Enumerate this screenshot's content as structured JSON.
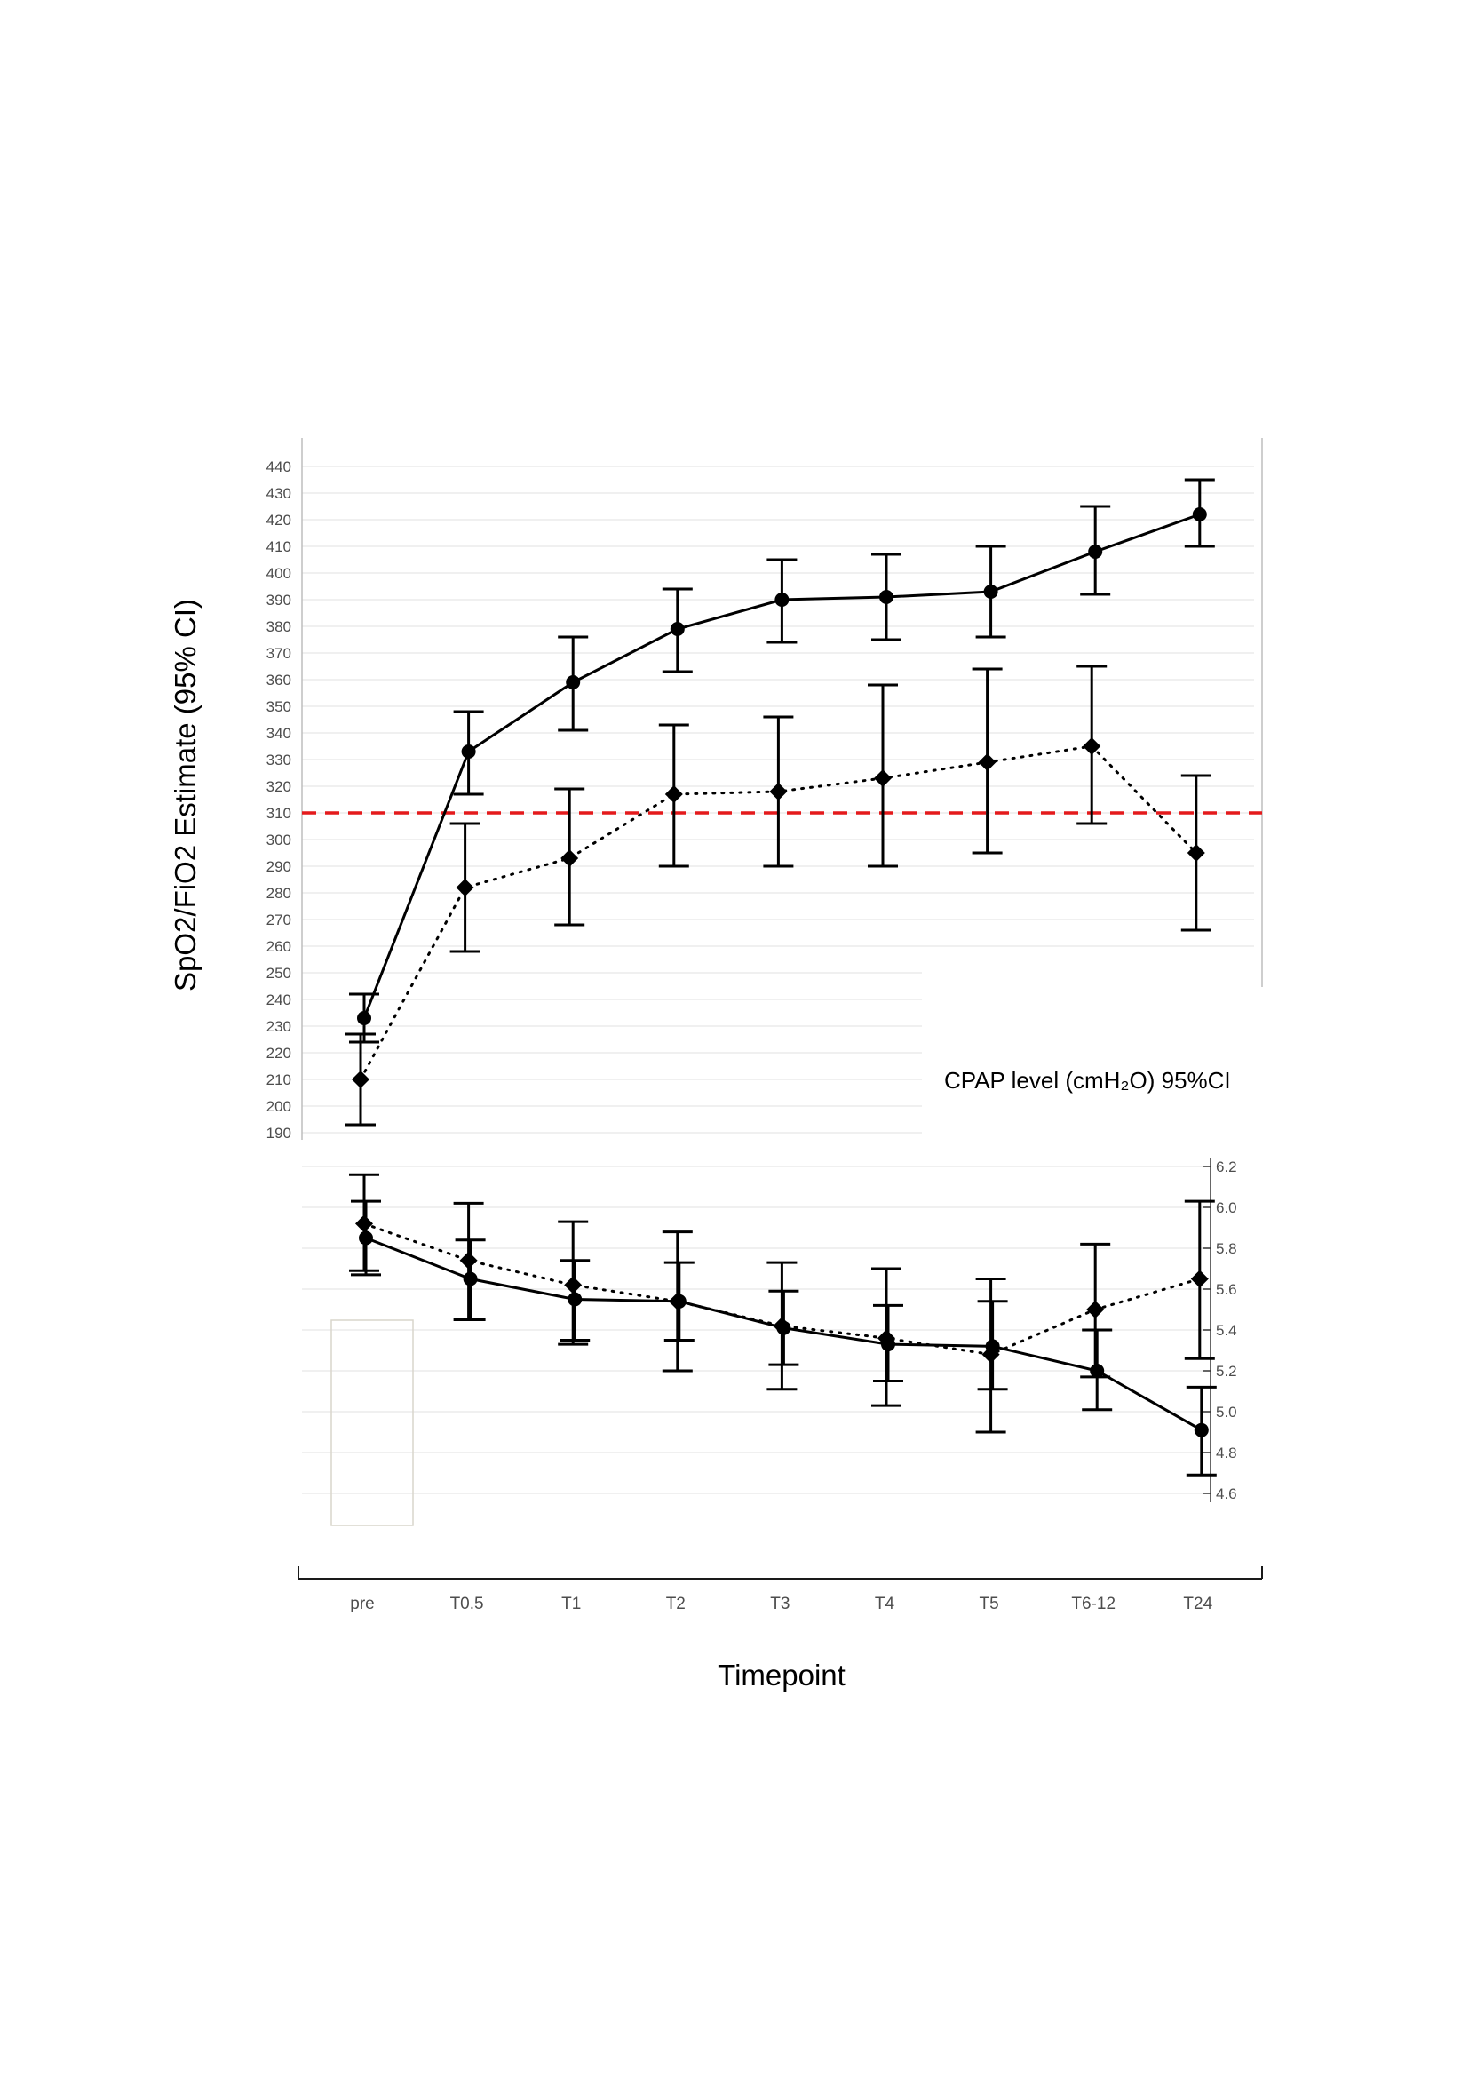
{
  "figure": {
    "x_axis_title": "Timepoint",
    "categories": [
      "pre",
      "T0.5",
      "T1",
      "T2",
      "T3",
      "T4",
      "T5",
      "T6-12",
      "T24"
    ]
  },
  "chart_data": [
    {
      "type": "line",
      "panel": "top",
      "ylabel": "SpO2/FiO2 Estimate (95% CI)",
      "ylim": [
        190,
        440
      ],
      "ytick_step": 10,
      "grid": true,
      "reference_line": {
        "value": 310,
        "label": "310",
        "color": "#e41a1c",
        "style": "dashed"
      },
      "x": [
        "pre",
        "T0.5",
        "T1",
        "T2",
        "T3",
        "T4",
        "T5",
        "T6-12",
        "T24"
      ],
      "series": [
        {
          "marker": "circle",
          "line_style": "solid",
          "values": [
            233,
            333,
            359,
            379,
            390,
            391,
            393,
            408,
            422
          ],
          "ci_low": [
            224,
            317,
            341,
            363,
            374,
            375,
            376,
            392,
            410
          ],
          "ci_high": [
            242,
            348,
            376,
            394,
            405,
            407,
            410,
            425,
            435
          ]
        },
        {
          "marker": "diamond",
          "line_style": "dotted",
          "values": [
            210,
            282,
            293,
            317,
            318,
            323,
            329,
            335,
            295
          ],
          "ci_low": [
            193,
            258,
            268,
            290,
            290,
            290,
            295,
            306,
            266
          ],
          "ci_high": [
            227,
            306,
            319,
            343,
            346,
            358,
            364,
            365,
            324
          ]
        }
      ]
    },
    {
      "type": "line",
      "panel": "bottom",
      "title": "CPAP level (cmH₂O) 95%CI",
      "ylim": [
        4.6,
        6.2
      ],
      "ytick_step": 0.2,
      "y_axis_side": "right",
      "grid": true,
      "x": [
        "pre",
        "T0.5",
        "T1",
        "T2",
        "T3",
        "T4",
        "T5",
        "T6-12",
        "T24"
      ],
      "series": [
        {
          "marker": "circle",
          "line_style": "solid",
          "values": [
            5.85,
            5.65,
            5.55,
            5.54,
            5.41,
            5.33,
            5.32,
            5.2,
            4.91
          ],
          "ci_low": [
            5.67,
            5.45,
            5.35,
            5.35,
            5.23,
            5.15,
            5.11,
            5.01,
            4.69
          ],
          "ci_high": [
            6.03,
            5.84,
            5.74,
            5.73,
            5.59,
            5.52,
            5.54,
            5.4,
            5.12
          ]
        },
        {
          "marker": "diamond",
          "line_style": "dotted",
          "values": [
            5.92,
            5.74,
            5.62,
            5.54,
            5.42,
            5.36,
            5.28,
            5.5,
            5.65
          ],
          "ci_low": [
            5.69,
            5.45,
            5.33,
            5.2,
            5.11,
            5.03,
            4.9,
            5.17,
            5.26
          ],
          "ci_high": [
            6.16,
            6.02,
            5.93,
            5.88,
            5.73,
            5.7,
            5.65,
            5.82,
            6.03
          ]
        }
      ]
    }
  ],
  "colors": {
    "series_line": "#000000",
    "reference_line": "#e41a1c",
    "reference_label": "#e41a1c"
  }
}
